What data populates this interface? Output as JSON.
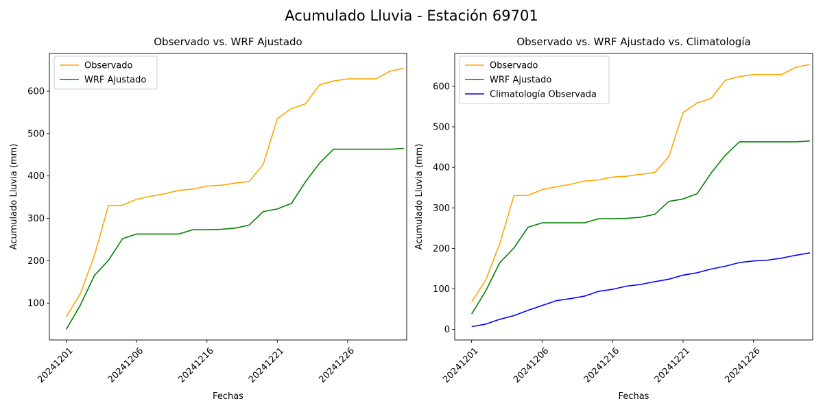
{
  "figure": {
    "title": "Acumulado Lluvia - Estación 69701"
  },
  "colors": {
    "observado": "#ffa500",
    "wrf": "#008000",
    "climatologia": "#0000ff"
  },
  "chart_data": [
    {
      "type": "line",
      "title": "Observado vs. WRF Ajustado",
      "xlabel": "Fechas",
      "ylabel": "Acumulado Lluvia (mm)",
      "xlim": [
        -1.2,
        24.2
      ],
      "ylim": [
        13,
        689
      ],
      "x_ticks": [
        0,
        5,
        10,
        15,
        20
      ],
      "x_tick_labels": [
        "20241201",
        "20241206",
        "20241216",
        "20241221",
        "20241226"
      ],
      "y_ticks": [
        100,
        200,
        300,
        400,
        500,
        600
      ],
      "y_tick_labels": [
        "100",
        "200",
        "300",
        "400",
        "500",
        "600"
      ],
      "legend_position": "upper-left",
      "grid": false,
      "series": [
        {
          "name": "Observado",
          "color_key": "observado",
          "values": [
            68,
            122,
            212,
            330,
            331,
            345,
            352,
            358,
            366,
            369,
            376,
            378,
            383,
            387,
            427,
            535,
            559,
            570,
            615,
            624,
            629,
            629,
            629,
            647,
            654
          ]
        },
        {
          "name": "WRF Ajustado",
          "color_key": "wrf",
          "values": [
            38,
            95,
            165,
            201,
            252,
            263,
            263,
            263,
            263,
            273,
            273,
            274,
            277,
            284,
            316,
            322,
            335,
            386,
            430,
            463,
            463,
            463,
            463,
            463,
            465
          ]
        }
      ]
    },
    {
      "type": "line",
      "title": "Observado vs. WRF Ajustado vs. Climatología",
      "xlabel": "Fechas",
      "ylabel": "Acumulado Lluvia (mm)",
      "xlim": [
        -1.2,
        24.2
      ],
      "ylim": [
        -26,
        681
      ],
      "x_ticks": [
        0,
        5,
        10,
        15,
        20
      ],
      "x_tick_labels": [
        "20241201",
        "20241206",
        "20241216",
        "20241221",
        "20241226"
      ],
      "y_ticks": [
        0,
        100,
        200,
        300,
        400,
        500,
        600
      ],
      "y_tick_labels": [
        "0",
        "100",
        "200",
        "300",
        "400",
        "500",
        "600"
      ],
      "legend_position": "upper-left",
      "grid": false,
      "series": [
        {
          "name": "Observado",
          "color_key": "observado",
          "values": [
            68,
            122,
            212,
            330,
            331,
            345,
            352,
            358,
            366,
            369,
            376,
            378,
            383,
            387,
            427,
            535,
            559,
            570,
            615,
            624,
            629,
            629,
            629,
            647,
            654
          ]
        },
        {
          "name": "WRF Ajustado",
          "color_key": "wrf",
          "values": [
            38,
            95,
            165,
            201,
            252,
            263,
            263,
            263,
            263,
            273,
            273,
            274,
            277,
            284,
            316,
            322,
            335,
            386,
            430,
            463,
            463,
            463,
            463,
            463,
            465
          ]
        },
        {
          "name": "Climatología Observada",
          "color_key": "climatologia",
          "values": [
            7,
            13,
            25,
            34,
            47,
            59,
            71,
            76,
            82,
            94,
            99,
            107,
            111,
            118,
            124,
            134,
            140,
            149,
            156,
            165,
            169,
            171,
            176,
            183,
            189
          ]
        }
      ]
    }
  ]
}
